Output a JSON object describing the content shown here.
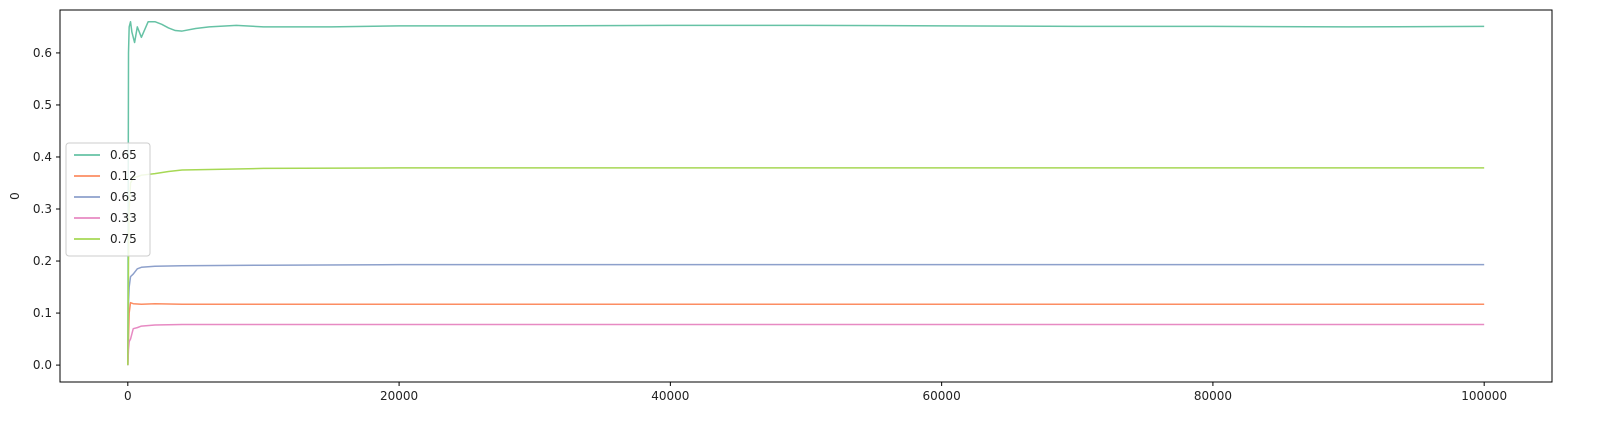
{
  "chart_data": {
    "type": "line",
    "title": "",
    "xlabel": "",
    "ylabel": "0",
    "xlim": [
      -5000,
      105000
    ],
    "ylim": [
      -0.0325,
      0.6825
    ],
    "x_ticks": [
      0,
      20000,
      40000,
      60000,
      80000,
      100000
    ],
    "x_tick_labels": [
      "0",
      "20000",
      "40000",
      "60000",
      "80000",
      "100000"
    ],
    "y_ticks": [
      0.0,
      0.1,
      0.2,
      0.3,
      0.4,
      0.5,
      0.6
    ],
    "y_tick_labels": [
      "0.0",
      "0.1",
      "0.2",
      "0.3",
      "0.4",
      "0.5",
      "0.6"
    ],
    "grid": false,
    "legend_position": "center-left",
    "series": [
      {
        "name": "0.65",
        "color": "#66c2a5",
        "x": [
          0,
          50,
          100,
          200,
          300,
          500,
          700,
          1000,
          1500,
          2000,
          2500,
          3000,
          3500,
          4000,
          5000,
          6000,
          8000,
          10000,
          15000,
          20000,
          30000,
          40000,
          50000,
          60000,
          70000,
          80000,
          90000,
          100000
        ],
        "y": [
          0.0,
          0.6,
          0.65,
          0.66,
          0.64,
          0.62,
          0.65,
          0.63,
          0.66,
          0.66,
          0.655,
          0.648,
          0.643,
          0.642,
          0.647,
          0.65,
          0.653,
          0.65,
          0.65,
          0.652,
          0.652,
          0.653,
          0.653,
          0.652,
          0.651,
          0.651,
          0.65,
          0.651
        ]
      },
      {
        "name": "0.12",
        "color": "#fc8d62",
        "x": [
          0,
          50,
          100,
          200,
          400,
          1000,
          2000,
          4000,
          10000,
          20000,
          40000,
          60000,
          80000,
          100000
        ],
        "y": [
          0.0,
          0.05,
          0.1,
          0.12,
          0.118,
          0.117,
          0.118,
          0.117,
          0.117,
          0.117,
          0.117,
          0.117,
          0.117,
          0.117
        ]
      },
      {
        "name": "0.63",
        "color": "#8da0cb",
        "x": [
          0,
          50,
          100,
          200,
          400,
          700,
          1000,
          2000,
          4000,
          10000,
          20000,
          40000,
          60000,
          80000,
          100000
        ],
        "y": [
          0.0,
          0.12,
          0.15,
          0.17,
          0.175,
          0.185,
          0.188,
          0.19,
          0.191,
          0.192,
          0.193,
          0.193,
          0.193,
          0.193,
          0.193
        ]
      },
      {
        "name": "0.33",
        "color": "#e78ac3",
        "x": [
          0,
          50,
          100,
          200,
          400,
          700,
          1000,
          2000,
          4000,
          10000,
          20000,
          40000,
          60000,
          80000,
          100000
        ],
        "y": [
          0.0,
          0.03,
          0.045,
          0.05,
          0.07,
          0.072,
          0.075,
          0.077,
          0.078,
          0.078,
          0.078,
          0.078,
          0.078,
          0.078,
          0.078
        ]
      },
      {
        "name": "0.75",
        "color": "#a6d854",
        "x": [
          0,
          50,
          100,
          200,
          400,
          700,
          1000,
          2000,
          3000,
          4000,
          6000,
          10000,
          20000,
          40000,
          60000,
          80000,
          100000
        ],
        "y": [
          0.0,
          0.2,
          0.3,
          0.35,
          0.36,
          0.362,
          0.365,
          0.368,
          0.372,
          0.375,
          0.376,
          0.378,
          0.379,
          0.379,
          0.379,
          0.379,
          0.379
        ]
      }
    ]
  }
}
